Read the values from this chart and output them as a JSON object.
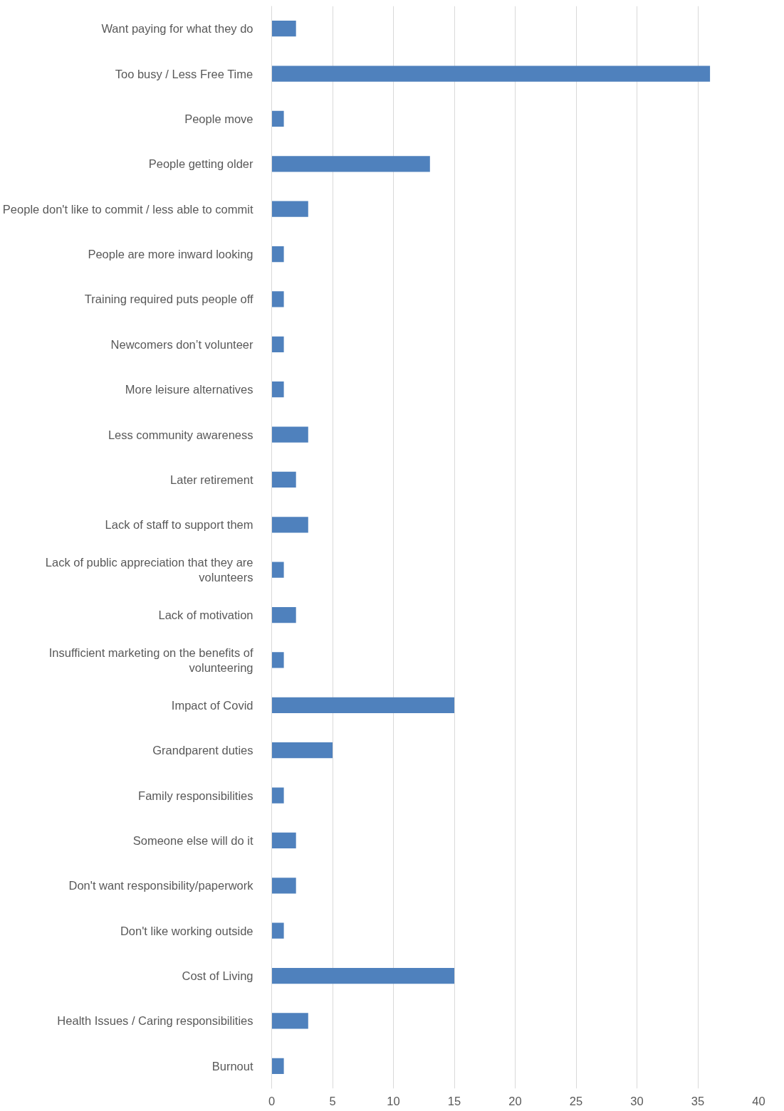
{
  "chart_data": {
    "type": "bar",
    "orientation": "horizontal",
    "categories": [
      "Want paying for what they do",
      "Too busy / Less Free Time",
      "People move",
      "People getting older",
      "People don't like to commit / less able to commit",
      "People are more inward looking",
      "Training required puts people off",
      "Newcomers don’t volunteer",
      "More leisure alternatives",
      "Less community awareness",
      "Later retirement",
      "Lack of staff to support them",
      "Lack of public appreciation that they are volunteers",
      "Lack of motivation",
      "Insufficient marketing on the benefits of volunteering",
      "Impact of Covid",
      "Grandparent duties",
      "Family responsibilities",
      "Someone else will do it",
      "Don't want responsibility/paperwork",
      "Don't like working outside",
      "Cost of Living",
      "Health Issues / Caring responsibilities",
      "Burnout"
    ],
    "values": [
      2,
      36,
      1,
      13,
      3,
      1,
      1,
      1,
      1,
      3,
      2,
      3,
      1,
      2,
      1,
      15,
      5,
      1,
      2,
      2,
      1,
      15,
      3,
      1
    ],
    "color": "#4f81bd",
    "xlim": [
      0,
      40
    ],
    "xticks": [
      0,
      5,
      10,
      15,
      20,
      25,
      30,
      35,
      40
    ],
    "grid": "x"
  }
}
